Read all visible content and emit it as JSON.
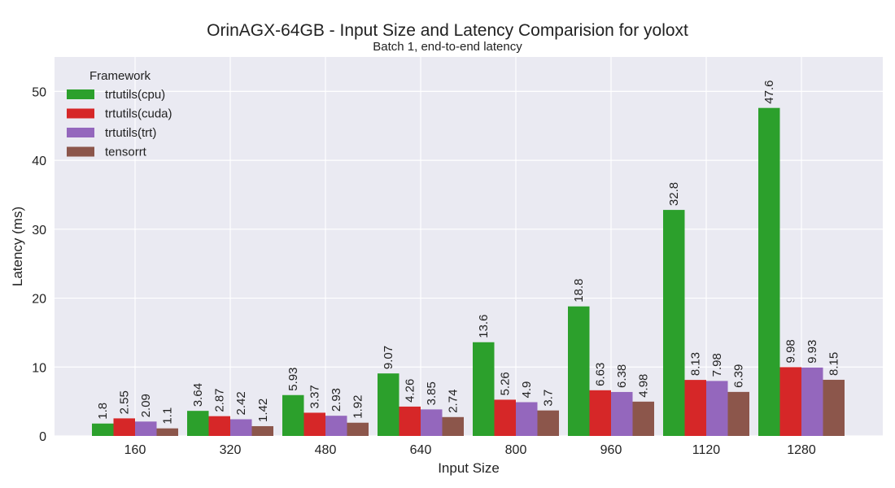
{
  "chart_data": {
    "type": "bar",
    "title": "OrinAGX-64GB - Input Size and Latency Comparision for yoloxt",
    "subtitle": "Batch 1, end-to-end latency",
    "xlabel": "Input Size",
    "ylabel": "Latency (ms)",
    "categories": [
      "160",
      "320",
      "480",
      "640",
      "800",
      "960",
      "1120",
      "1280"
    ],
    "ylim": [
      0,
      55
    ],
    "yticks": [
      0,
      10,
      20,
      30,
      40,
      50
    ],
    "grid": true,
    "legend": {
      "title": "Framework",
      "placement": "top-left"
    },
    "series": [
      {
        "name": "trtutils(cpu)",
        "color": "#2ca02c",
        "values": [
          1.8,
          3.64,
          5.93,
          9.07,
          13.6,
          18.8,
          32.8,
          47.6
        ],
        "labels": [
          "1.8",
          "3.64",
          "5.93",
          "9.07",
          "13.6",
          "18.8",
          "32.8",
          "47.6"
        ]
      },
      {
        "name": "trtutils(cuda)",
        "color": "#d62728",
        "values": [
          2.55,
          2.87,
          3.37,
          4.26,
          5.26,
          6.63,
          8.13,
          9.98
        ],
        "labels": [
          "2.55",
          "2.87",
          "3.37",
          "4.26",
          "5.26",
          "6.63",
          "8.13",
          "9.98"
        ]
      },
      {
        "name": "trtutils(trt)",
        "color": "#9467bd",
        "values": [
          2.09,
          2.42,
          2.93,
          3.85,
          4.9,
          6.38,
          7.98,
          9.93
        ],
        "labels": [
          "2.09",
          "2.42",
          "2.93",
          "3.85",
          "4.9",
          "6.38",
          "7.98",
          "9.93"
        ]
      },
      {
        "name": "tensorrt",
        "color": "#8c564b",
        "values": [
          1.1,
          1.42,
          1.92,
          2.74,
          3.7,
          4.98,
          6.39,
          8.15
        ],
        "labels": [
          "1.1",
          "1.42",
          "1.92",
          "2.74",
          "3.7",
          "4.98",
          "6.39",
          "8.15"
        ]
      }
    ],
    "colors": {
      "plot_background": "#eaeaf2",
      "grid": "#ffffff"
    }
  }
}
